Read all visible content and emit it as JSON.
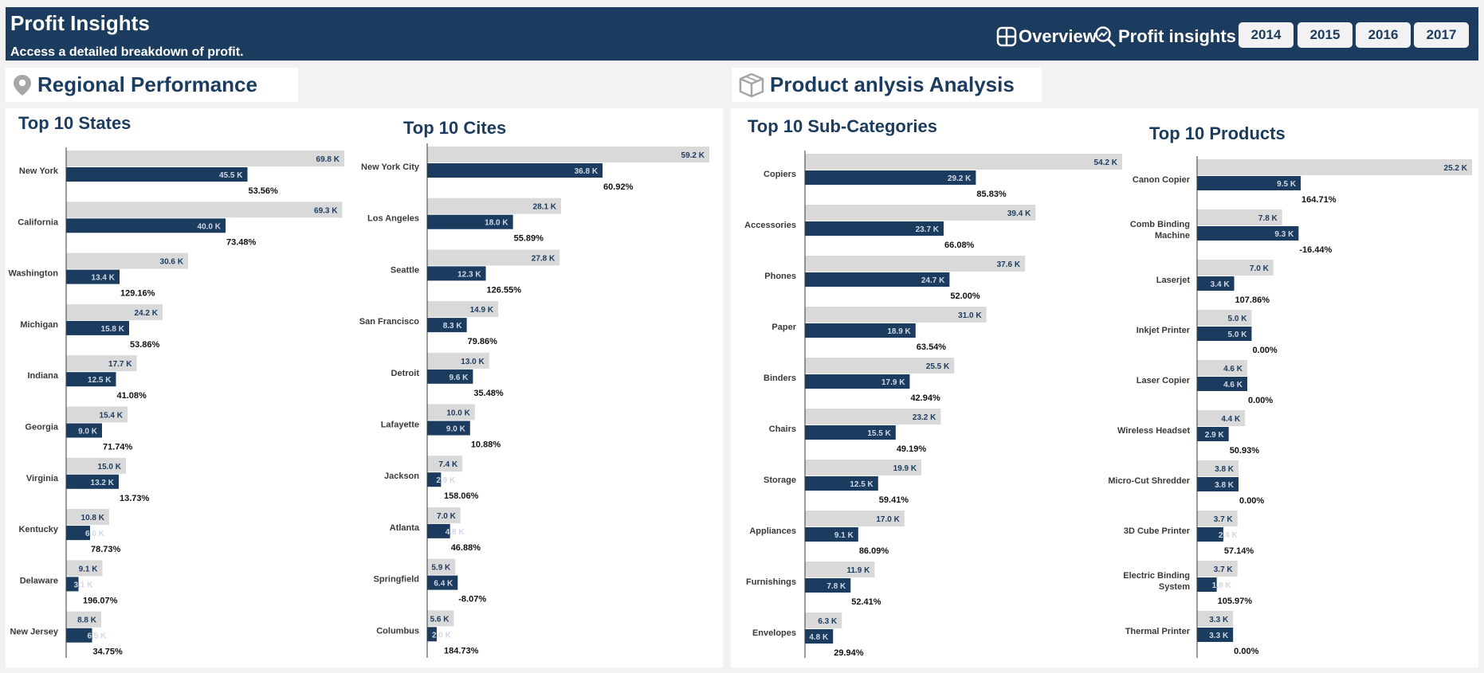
{
  "header": {
    "title": "Profit Insights",
    "subtitle": "Access a detailed breakdown of profit.",
    "nav_overview": "Overview",
    "nav_profit": "Profit insights",
    "years": [
      "2014",
      "2015",
      "2016",
      "2017"
    ]
  },
  "sections": {
    "regional": "Regional Performance",
    "product": "Product anlysis Analysis"
  },
  "colors": {
    "navy": "#1c3c5f",
    "gray_bar": "#d9d9d9",
    "light_text": "#d0d8e4"
  },
  "chart_data": [
    {
      "type": "bar",
      "id": "states",
      "title": "Top 10 States",
      "categories": [
        "New York",
        "California",
        "Washington",
        "Michigan",
        "Indiana",
        "Georgia",
        "Virginia",
        "Kentucky",
        "Delaware",
        "New Jersey"
      ],
      "series": [
        {
          "values": [
            69.8,
            69.3,
            30.6,
            24.2,
            17.7,
            15.4,
            15.0,
            10.8,
            9.1,
            8.8
          ],
          "labels": [
            "69.8 K",
            "69.3 K",
            "30.6 K",
            "24.2 K",
            "17.7 K",
            "15.4 K",
            "15.0 K",
            "10.8 K",
            "9.1 K",
            "8.8 K"
          ]
        },
        {
          "values": [
            45.5,
            40.0,
            13.4,
            15.8,
            12.5,
            9.0,
            13.2,
            6.0,
            3.1,
            6.5
          ],
          "labels": [
            "45.5 K",
            "40.0 K",
            "13.4 K",
            "15.8 K",
            "12.5 K",
            "9.0 K",
            "13.2 K",
            "6.0 K",
            "3.1 K",
            "6.5 K"
          ]
        }
      ],
      "pct_labels": [
        "53.56%",
        "73.48%",
        "129.16%",
        "53.86%",
        "41.08%",
        "71.74%",
        "13.73%",
        "78.73%",
        "196.07%",
        "34.75%"
      ]
    },
    {
      "type": "bar",
      "id": "cities",
      "title": "Top 10 Cites",
      "categories": [
        "New York City",
        "Los Angeles",
        "Seattle",
        "San Francisco",
        "Detroit",
        "Lafayette",
        "Jackson",
        "Atlanta",
        "Springfield",
        "Columbus"
      ],
      "series": [
        {
          "values": [
            59.2,
            28.1,
            27.8,
            14.9,
            13.0,
            10.0,
            7.4,
            7.0,
            5.9,
            5.6
          ],
          "labels": [
            "59.2 K",
            "28.1 K",
            "27.8 K",
            "14.9 K",
            "13.0 K",
            "10.0 K",
            "7.4 K",
            "7.0 K",
            "5.9 K",
            "5.6 K"
          ]
        },
        {
          "values": [
            36.8,
            18.0,
            12.3,
            8.3,
            9.6,
            9.0,
            2.9,
            4.8,
            6.4,
            2.0
          ],
          "labels": [
            "36.8 K",
            "18.0 K",
            "12.3 K",
            "8.3 K",
            "9.6 K",
            "9.0 K",
            "2.9 K",
            "4.8 K",
            "6.4 K",
            "2.0 K"
          ]
        }
      ],
      "pct_labels": [
        "60.92%",
        "55.89%",
        "126.55%",
        "79.86%",
        "35.48%",
        "10.88%",
        "158.06%",
        "46.88%",
        "-8.07%",
        "184.73%"
      ]
    },
    {
      "type": "bar",
      "id": "subcats",
      "title": "Top 10 Sub-Categories",
      "categories": [
        "Copiers",
        "Accessories",
        "Phones",
        "Paper",
        "Binders",
        "Chairs",
        "Storage",
        "Appliances",
        "Furnishings",
        "Envelopes"
      ],
      "series": [
        {
          "values": [
            54.2,
            39.4,
            37.6,
            31.0,
            25.5,
            23.2,
            19.9,
            17.0,
            11.9,
            6.3
          ],
          "labels": [
            "54.2 K",
            "39.4 K",
            "37.6 K",
            "31.0 K",
            "25.5 K",
            "23.2 K",
            "19.9 K",
            "17.0 K",
            "11.9 K",
            "6.3 K"
          ]
        },
        {
          "values": [
            29.2,
            23.7,
            24.7,
            18.9,
            17.9,
            15.5,
            12.5,
            9.1,
            7.8,
            4.8
          ],
          "labels": [
            "29.2 K",
            "23.7 K",
            "24.7 K",
            "18.9 K",
            "17.9 K",
            "15.5 K",
            "12.5 K",
            "9.1 K",
            "7.8 K",
            "4.8 K"
          ]
        }
      ],
      "pct_labels": [
        "85.83%",
        "66.08%",
        "52.00%",
        "63.54%",
        "42.94%",
        "49.19%",
        "59.41%",
        "86.09%",
        "52.41%",
        "29.94%"
      ]
    },
    {
      "type": "bar",
      "id": "products",
      "title": "Top 10 Products",
      "categories": [
        [
          "Canon Copier"
        ],
        [
          "Comb Binding",
          "Machine"
        ],
        [
          "Laserjet"
        ],
        [
          "Inkjet Printer"
        ],
        [
          "Laser Copier"
        ],
        [
          "Wireless Headset"
        ],
        [
          "Micro-Cut Shredder"
        ],
        [
          "3D Cube Printer"
        ],
        [
          "Electric Binding",
          "System"
        ],
        [
          "Thermal Printer"
        ]
      ],
      "series": [
        {
          "values": [
            25.2,
            7.8,
            7.0,
            5.0,
            4.6,
            4.4,
            3.8,
            3.7,
            3.7,
            3.3
          ],
          "labels": [
            "25.2 K",
            "7.8 K",
            "7.0 K",
            "5.0 K",
            "4.6 K",
            "4.4 K",
            "3.8 K",
            "3.7 K",
            "3.7 K",
            "3.3 K"
          ]
        },
        {
          "values": [
            9.5,
            9.3,
            3.4,
            5.0,
            4.6,
            2.9,
            3.8,
            2.4,
            1.8,
            3.3
          ],
          "labels": [
            "9.5 K",
            "9.3 K",
            "3.4 K",
            "5.0 K",
            "4.6 K",
            "2.9 K",
            "3.8 K",
            "2.4 K",
            "1.8 K",
            "3.3 K"
          ]
        }
      ],
      "pct_labels": [
        "164.71%",
        "-16.44%",
        "107.86%",
        "0.00%",
        "0.00%",
        "50.93%",
        "0.00%",
        "57.14%",
        "105.97%",
        "0.00%"
      ]
    }
  ]
}
